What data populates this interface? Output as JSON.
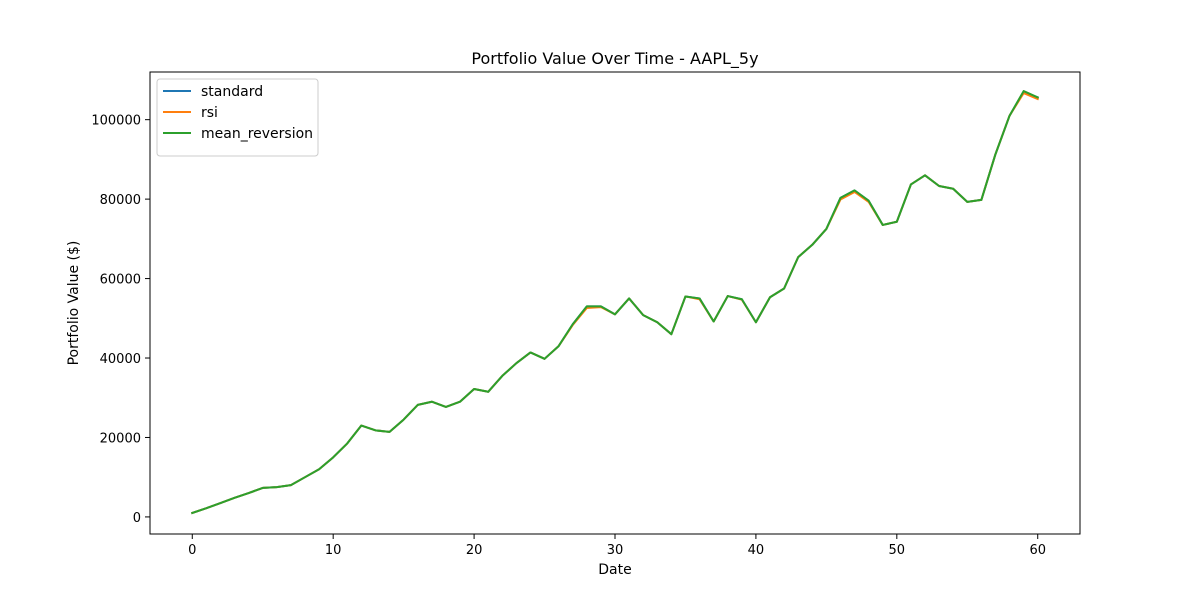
{
  "chart_data": {
    "type": "line",
    "title": "Portfolio Value Over Time - AAPL_5y",
    "xlabel": "Date",
    "ylabel": "Portfolio Value ($)",
    "xlim": [
      -3,
      63
    ],
    "ylim": [
      -4300,
      112000
    ],
    "xticks": [
      0,
      10,
      20,
      30,
      40,
      50,
      60
    ],
    "xtick_labels": [
      "0",
      "10",
      "20",
      "30",
      "40",
      "50",
      "60"
    ],
    "yticks": [
      0,
      20000,
      40000,
      60000,
      80000,
      100000
    ],
    "ytick_labels": [
      "0",
      "20000",
      "40000",
      "60000",
      "80000",
      "100000"
    ],
    "grid": false,
    "legend_position": "upper-left",
    "x": [
      0,
      1,
      2,
      3,
      4,
      5,
      6,
      7,
      8,
      9,
      10,
      11,
      12,
      13,
      14,
      15,
      16,
      17,
      18,
      19,
      20,
      21,
      22,
      23,
      24,
      25,
      26,
      27,
      28,
      29,
      30,
      31,
      32,
      33,
      34,
      35,
      36,
      37,
      38,
      39,
      40,
      41,
      42,
      43,
      44,
      45,
      46,
      47,
      48,
      49,
      50,
      51,
      52,
      53,
      54,
      55,
      56,
      57,
      58,
      59,
      60
    ],
    "series": [
      {
        "name": "standard",
        "color": "#1f77b4",
        "values": [
          1000,
          2200,
          3500,
          4800,
          6000,
          7300,
          7500,
          8000,
          10000,
          12000,
          15000,
          18500,
          23000,
          21800,
          21400,
          24500,
          28200,
          29000,
          27700,
          29000,
          32200,
          31500,
          35500,
          38700,
          41400,
          39800,
          43000,
          48500,
          53000,
          53000,
          51000,
          55000,
          50800,
          49000,
          46000,
          55500,
          55000,
          49200,
          55600,
          54800,
          49000,
          55300,
          57500,
          65400,
          68500,
          72500,
          80300,
          82200,
          79600,
          73500,
          74300,
          83700,
          86000,
          83300,
          82600,
          79300,
          79800,
          91300,
          101000,
          107000,
          105600
        ]
      },
      {
        "name": "rsi",
        "color": "#ff7f0e",
        "values": [
          1000,
          2200,
          3500,
          4800,
          6000,
          7300,
          7500,
          8000,
          10000,
          12000,
          15000,
          18500,
          23000,
          21800,
          21400,
          24500,
          28200,
          29000,
          27700,
          29000,
          32200,
          31500,
          35500,
          38700,
          41400,
          39800,
          43000,
          48300,
          52600,
          52800,
          51000,
          55000,
          50800,
          49000,
          46000,
          55500,
          54800,
          49200,
          55600,
          54700,
          49000,
          55300,
          57500,
          65400,
          68500,
          72500,
          79900,
          81800,
          79300,
          73500,
          74300,
          83700,
          86000,
          83300,
          82600,
          79300,
          79800,
          91300,
          101000,
          106700,
          105200
        ]
      },
      {
        "name": "mean_reversion",
        "color": "#2ca02c",
        "values": [
          1000,
          2200,
          3500,
          4800,
          6000,
          7300,
          7500,
          8000,
          10000,
          12000,
          15000,
          18500,
          23000,
          21800,
          21400,
          24500,
          28200,
          29000,
          27700,
          29000,
          32200,
          31500,
          35500,
          38700,
          41400,
          39800,
          43000,
          48500,
          53000,
          53000,
          51000,
          55000,
          50800,
          49000,
          46000,
          55500,
          55000,
          49200,
          55600,
          54800,
          49000,
          55300,
          57500,
          65400,
          68500,
          72500,
          80300,
          82200,
          79600,
          73500,
          74300,
          83700,
          86000,
          83300,
          82600,
          79300,
          79800,
          91300,
          101000,
          107200,
          105600
        ]
      }
    ]
  }
}
